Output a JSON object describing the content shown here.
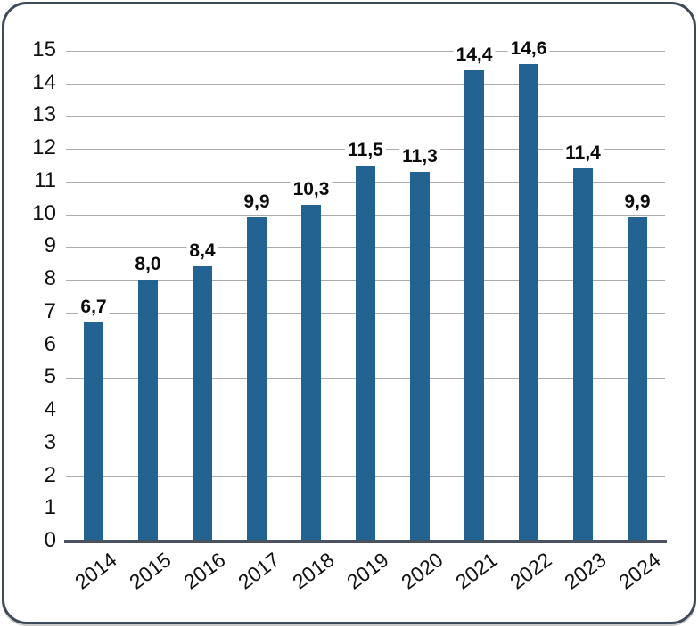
{
  "frame": {
    "border_color": "#3E4959",
    "background_color": "#FFFFFF"
  },
  "chart_data": {
    "type": "bar",
    "title": "",
    "xlabel": "",
    "ylabel": "",
    "categories": [
      "2014",
      "2015",
      "2016",
      "2017",
      "2018",
      "2019",
      "2020",
      "2021",
      "2022",
      "2023",
      "2024"
    ],
    "values": [
      6.7,
      8.0,
      8.4,
      9.9,
      10.3,
      11.5,
      11.3,
      14.4,
      14.6,
      11.4,
      9.9
    ],
    "value_labels": [
      "6,7",
      "8,0",
      "8,4",
      "9,9",
      "10,3",
      "11,5",
      "11,3",
      "14,4",
      "14,6",
      "11,4",
      "9,9"
    ],
    "ylim": [
      0,
      15
    ],
    "ytick_step": 1,
    "yticks": [
      "0",
      "1",
      "2",
      "3",
      "4",
      "5",
      "6",
      "7",
      "8",
      "9",
      "10",
      "11",
      "12",
      "13",
      "14",
      "15"
    ],
    "grid": true,
    "legend_position": "none",
    "bar_color": "#236392",
    "gridline_color": "#ABABAB",
    "axis_line_color": "#4A5260",
    "text_color": "#111111",
    "decimal_separator": ","
  }
}
